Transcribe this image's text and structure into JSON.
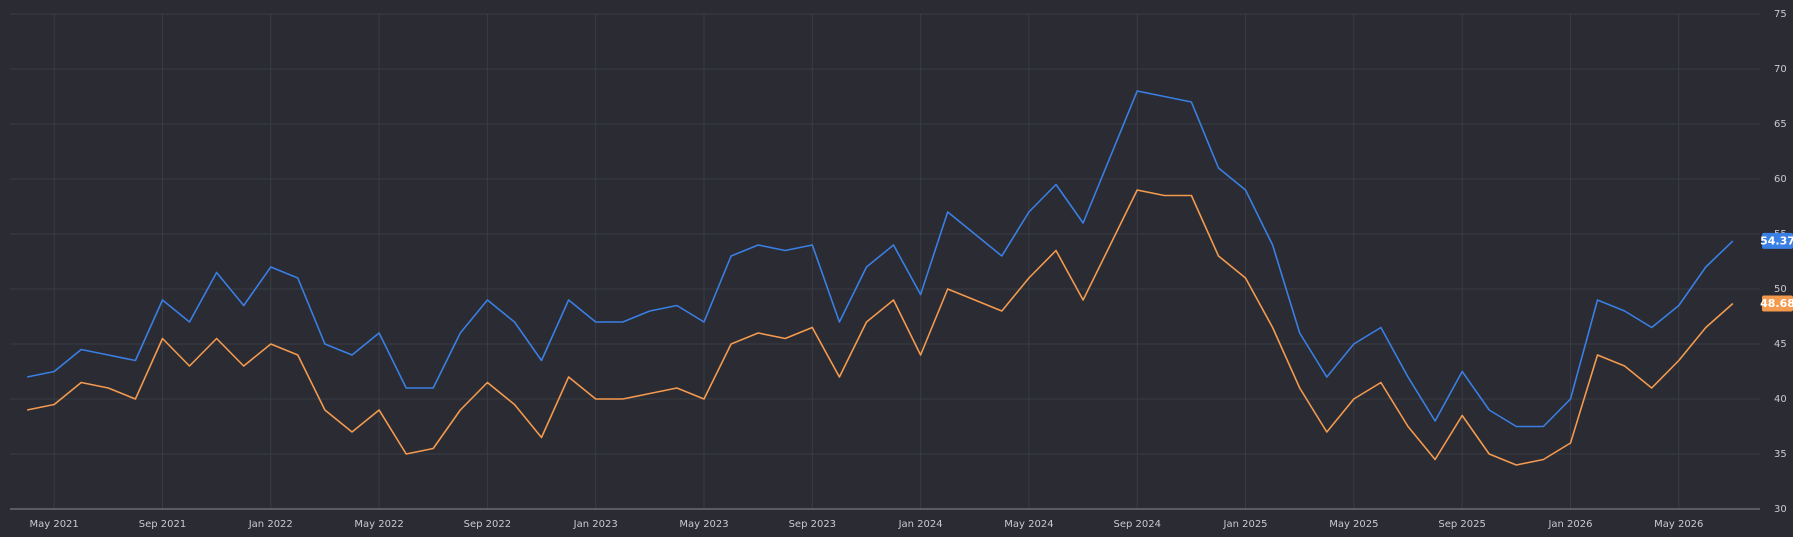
{
  "chart_data": {
    "type": "line",
    "x": [
      "2021-04",
      "2021-05",
      "2021-06",
      "2021-07",
      "2021-08",
      "2021-09",
      "2021-10",
      "2021-11",
      "2021-12",
      "2022-01",
      "2022-02",
      "2022-03",
      "2022-04",
      "2022-05",
      "2022-06",
      "2022-07",
      "2022-08",
      "2022-09",
      "2022-10",
      "2022-11",
      "2022-12",
      "2023-01",
      "2023-02",
      "2023-03",
      "2023-04",
      "2023-05",
      "2023-06",
      "2023-07",
      "2023-08",
      "2023-09",
      "2023-10",
      "2023-11",
      "2023-12",
      "2024-01",
      "2024-02",
      "2024-03",
      "2024-04",
      "2024-05",
      "2024-06",
      "2024-07",
      "2024-08",
      "2024-09",
      "2024-10",
      "2024-11",
      "2024-12",
      "2025-01",
      "2025-02",
      "2025-03",
      "2025-04",
      "2025-05",
      "2025-06",
      "2025-07",
      "2025-08",
      "2025-09",
      "2025-10",
      "2025-11",
      "2025-12",
      "2026-01",
      "2026-02",
      "2026-03",
      "2026-04",
      "2026-05",
      "2026-06",
      "2026-07"
    ],
    "series": [
      {
        "color": "#3a7fe3",
        "values": [
          42,
          42.5,
          44.5,
          44,
          43.5,
          49,
          47,
          51.5,
          48.5,
          52,
          51,
          45,
          44,
          46,
          41,
          41,
          46,
          49,
          47,
          43.5,
          49,
          47,
          47,
          48,
          48.5,
          47,
          53,
          54,
          53.5,
          54,
          47,
          52,
          54,
          49.5,
          57,
          55,
          53,
          57,
          59.5,
          56,
          62,
          68,
          67.5,
          67,
          61,
          59,
          54,
          46,
          42,
          45,
          46.5,
          42,
          38,
          42.5,
          39,
          37.5,
          37.5,
          40,
          49,
          48,
          46.5,
          48.5,
          52,
          54.37
        ]
      },
      {
        "color": "#f39a4f",
        "values": [
          39,
          39.5,
          41.5,
          41,
          40,
          45.5,
          43,
          45.5,
          43,
          45,
          44,
          39,
          37,
          39,
          35,
          35.5,
          39,
          41.5,
          39.5,
          36.5,
          42,
          40,
          40,
          40.5,
          41,
          40,
          45,
          46,
          45.5,
          46.5,
          42,
          47,
          49,
          44,
          50,
          49,
          48,
          51,
          53.5,
          49,
          54,
          59,
          58.5,
          58.5,
          53,
          51,
          46.5,
          41,
          37,
          40,
          41.5,
          37.5,
          34.5,
          38.5,
          35,
          34,
          34.5,
          36,
          44,
          43,
          41,
          43.5,
          46.5,
          48.68
        ]
      }
    ],
    "xlim": [
      "2021-03",
      "2026-08"
    ],
    "xticks": [
      {
        "value": "2021-05",
        "label": "May 2021"
      },
      {
        "value": "2021-09",
        "label": "Sep 2021"
      },
      {
        "value": "2022-01",
        "label": "Jan 2022"
      },
      {
        "value": "2022-05",
        "label": "May 2022"
      },
      {
        "value": "2022-09",
        "label": "Sep 2022"
      },
      {
        "value": "2023-01",
        "label": "Jan 2023"
      },
      {
        "value": "2023-05",
        "label": "May 2023"
      },
      {
        "value": "2023-09",
        "label": "Sep 2023"
      },
      {
        "value": "2024-01",
        "label": "Jan 2024"
      },
      {
        "value": "2024-05",
        "label": "May 2024"
      },
      {
        "value": "2024-09",
        "label": "Sep 2024"
      },
      {
        "value": "2025-01",
        "label": "Jan 2025"
      },
      {
        "value": "2025-05",
        "label": "May 2025"
      },
      {
        "value": "2025-09",
        "label": "Sep 2025"
      },
      {
        "value": "2026-01",
        "label": "Jan 2026"
      },
      {
        "value": "2026-05",
        "label": "May 2026"
      }
    ],
    "ylim": [
      30,
      75
    ],
    "yticks": [
      30,
      35,
      40,
      45,
      50,
      55,
      60,
      65,
      70,
      75
    ],
    "grid": true
  }
}
